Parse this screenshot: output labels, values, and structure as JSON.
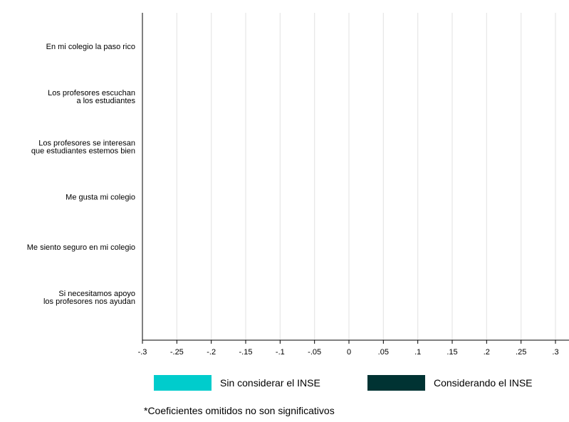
{
  "chart_data": {
    "type": "bar",
    "orientation": "horizontal",
    "categories": [
      [
        "En mi colegio la paso rico"
      ],
      [
        "Los profesores escuchan",
        "a los estudiantes"
      ],
      [
        "Los profesores se interesan",
        "que estudiantes estemos bien"
      ],
      [
        "Me gusta mi colegio"
      ],
      [
        "Me siento seguro en mi colegio"
      ],
      [
        "Si necesitamos apoyo",
        "los profesores nos ayudan"
      ]
    ],
    "xlim": [
      -0.3,
      0.3
    ],
    "xticks": [
      {
        "value": -0.3,
        "label": "-.3"
      },
      {
        "value": -0.25,
        "label": "-.25"
      },
      {
        "value": -0.2,
        "label": "-.2"
      },
      {
        "value": -0.15,
        "label": "-.15"
      },
      {
        "value": -0.1,
        "label": "-.1"
      },
      {
        "value": -0.05,
        "label": "-.05"
      },
      {
        "value": 0,
        "label": "0"
      },
      {
        "value": 0.05,
        "label": ".05"
      },
      {
        "value": 0.1,
        "label": ".1"
      },
      {
        "value": 0.15,
        "label": ".15"
      },
      {
        "value": 0.2,
        "label": ".2"
      },
      {
        "value": 0.25,
        "label": ".25"
      },
      {
        "value": 0.3,
        "label": ".3"
      }
    ],
    "grid": "vertical",
    "series": [
      {
        "name": "Sin considerar el INSE",
        "color": "#00CCCC",
        "values": [
          null,
          null,
          null,
          null,
          null,
          null
        ]
      },
      {
        "name": "Considerando el INSE",
        "color": "#003333",
        "values": [
          null,
          null,
          null,
          null,
          null,
          null
        ]
      }
    ],
    "legend_position": "bottom",
    "note": "*Coeficientes omitidos no son significativos"
  }
}
